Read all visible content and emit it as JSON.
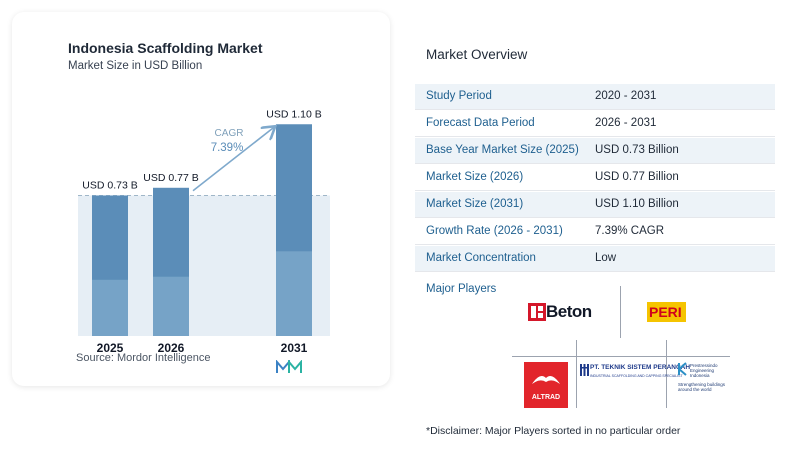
{
  "chart_data": {
    "type": "bar",
    "title": "Indonesia Scaffolding Market",
    "subtitle": "Market Size in USD Billion",
    "categories": [
      "2025",
      "2026",
      "2031"
    ],
    "values": [
      0.73,
      0.77,
      1.1
    ],
    "data_labels": [
      "USD 0.73 B",
      "USD 0.77 B",
      "USD 1.10 B"
    ],
    "ylim": [
      0,
      1.2
    ],
    "grid": false,
    "colors": {
      "bar": "#5b8db8",
      "bar_light": "#8cb6d4",
      "band": "#e6eef5",
      "dashed": "#9fb6c8",
      "arrow": "#7fa9cc"
    },
    "annotation": {
      "label": "CAGR",
      "value": "7.39%"
    }
  },
  "source": "Source: Mordor Intelligence",
  "overview": {
    "title": "Market Overview",
    "rows": [
      {
        "label": "Study Period",
        "value": "2020 - 2031"
      },
      {
        "label": "Forecast Data Period",
        "value": "2026 - 2031"
      },
      {
        "label": "Base Year Market Size (2025)",
        "value": "USD 0.73 Billion"
      },
      {
        "label": "Market Size (2026)",
        "value": "USD 0.77 Billion"
      },
      {
        "label": "Market Size (2031)",
        "value": "USD 1.10 Billion"
      },
      {
        "label": "Growth Rate (2026 - 2031)",
        "value": "7.39% CAGR"
      },
      {
        "label": "Market Concentration",
        "value": "Low"
      }
    ]
  },
  "major_players": {
    "title": "Major Players",
    "logos": {
      "beton": "Beton",
      "peri": "PERI",
      "altrad": "ALTRAD",
      "tsp": "PT. TEKNIK SISTEM PERANCAH",
      "tsp_sub": "INDUSTRIAL SCAFFOLDING AND CAPPING SPECIALIST",
      "pis": "Prestressindo Engineering Indonesia",
      "pis_tag": "Strengthening buildings around the world"
    }
  },
  "disclaimer": "*Disclaimer: Major Players sorted in no particular order"
}
